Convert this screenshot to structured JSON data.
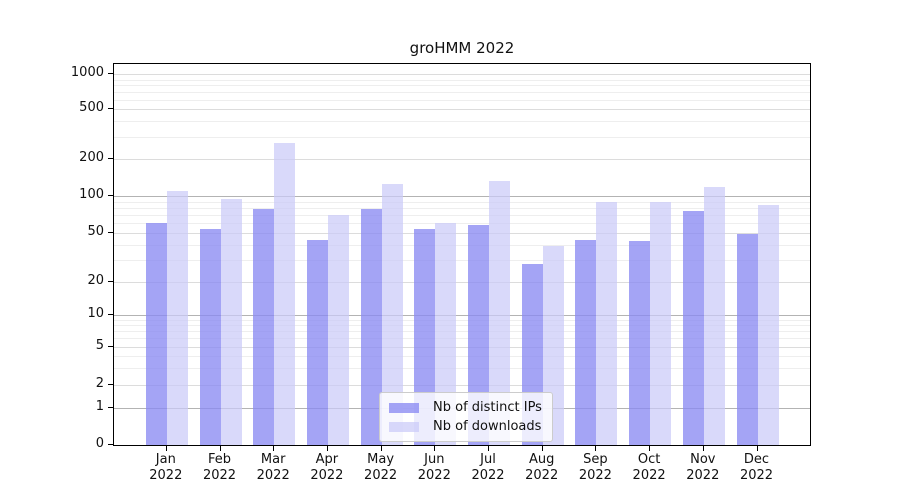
{
  "chart": {
    "title": "groHMM 2022"
  },
  "chart_data": {
    "type": "bar",
    "title": "groHMM 2022",
    "categories": [
      "Jan 2022",
      "Feb 2022",
      "Mar 2022",
      "Apr 2022",
      "May 2022",
      "Jun 2022",
      "Jul 2022",
      "Aug 2022",
      "Sep 2022",
      "Oct 2022",
      "Nov 2022",
      "Dec 2022"
    ],
    "series": [
      {
        "name": "Nb of distinct IPs",
        "color": "rgba(138,138,242,0.78)",
        "values": [
          60,
          54,
          78,
          44,
          79,
          54,
          58,
          28,
          44,
          43,
          75,
          49
        ]
      },
      {
        "name": "Nb of downloads",
        "color": "rgba(202,202,248,0.72)",
        "values": [
          110,
          95,
          268,
          70,
          125,
          60,
          133,
          39,
          90,
          90,
          120,
          85
        ]
      }
    ],
    "yscale": "log-like",
    "ylim": [
      0,
      1000
    ],
    "y_ticks": [
      0,
      1,
      2,
      5,
      10,
      20,
      50,
      100,
      200,
      500,
      1000
    ],
    "y_minor_gridlines": [
      3,
      4,
      6,
      7,
      8,
      9,
      30,
      40,
      60,
      70,
      80,
      90,
      300,
      400,
      600,
      700,
      800,
      900
    ],
    "grid": true,
    "legend_position": "lower-center-inside",
    "colors": {
      "grid_major": "#dcdcdc",
      "grid_minor": "#eeeeee",
      "grid_power10": "#b3b3b3",
      "axis": "#000000",
      "background": "#ffffff"
    }
  }
}
